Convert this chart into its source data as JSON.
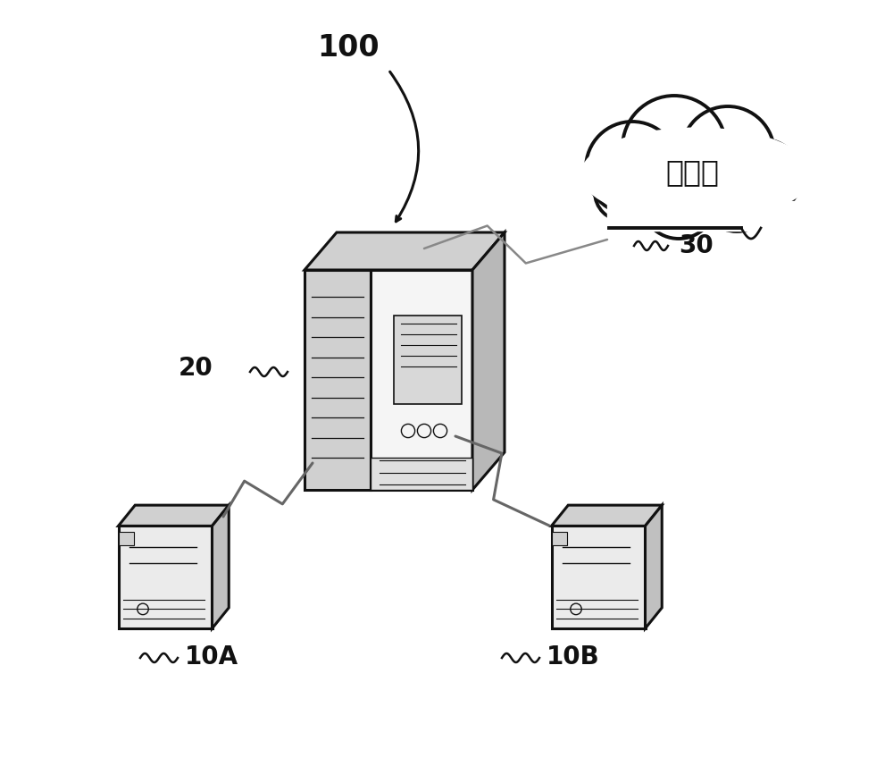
{
  "bg_color": "#ffffff",
  "label_100": "100",
  "label_20": "20",
  "label_30": "30",
  "label_10A": "10A",
  "label_10B": "10B",
  "cloud_text": "云平台",
  "line_color": "#111111",
  "fill_light": "#ebebeb",
  "fill_lighter": "#f5f5f5",
  "fill_mid": "#d0d0d0",
  "fill_dark": "#b8b8b8",
  "fill_side": "#c0c0c0"
}
